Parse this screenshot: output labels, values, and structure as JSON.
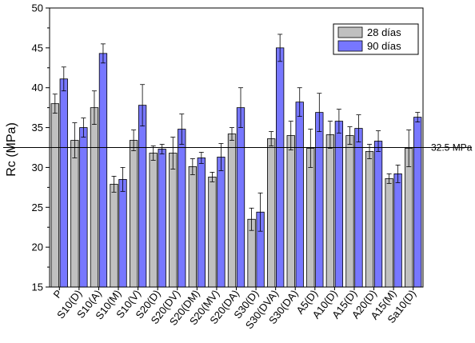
{
  "chart_data": {
    "type": "bar",
    "ylabel": "Rc (MPa)",
    "ylim": [
      15,
      50
    ],
    "yticks": [
      15,
      20,
      25,
      30,
      35,
      40,
      45,
      50
    ],
    "categories": [
      "P",
      "S10(D)",
      "S10(A)",
      "S10(M)",
      "S10(V)",
      "S20(D)",
      "S20(DV)",
      "S20(DM)",
      "S20(MV)",
      "S20(DA)",
      "S30(D)",
      "S30(DVA)",
      "S30(DA)",
      "A5(D)",
      "A10(D)",
      "A15(D)",
      "A20(D)",
      "A15(M)",
      "Sa10(D)"
    ],
    "series": [
      {
        "name": "28 días",
        "color": "#c0c0c0",
        "values": [
          38.0,
          33.4,
          37.5,
          27.9,
          33.4,
          31.8,
          31.8,
          30.1,
          28.8,
          34.2,
          23.5,
          33.6,
          34.0,
          32.4,
          34.1,
          34.0,
          32.0,
          28.6,
          32.4
        ],
        "errors": [
          1.2,
          2.2,
          2.1,
          1.0,
          1.3,
          0.9,
          2.0,
          1.0,
          0.6,
          0.8,
          1.4,
          0.9,
          1.8,
          2.4,
          1.7,
          1.1,
          0.9,
          0.6,
          2.3
        ]
      },
      {
        "name": "90 días",
        "color": "#7777ff",
        "values": [
          41.1,
          35.0,
          44.3,
          28.5,
          37.8,
          32.3,
          34.8,
          31.2,
          31.3,
          37.5,
          24.4,
          45.0,
          38.2,
          36.9,
          35.8,
          34.9,
          33.3,
          29.2,
          36.3
        ]
      }
    ],
    "errors90": [
      1.5,
      1.2,
      1.2,
      1.5,
      2.6,
      0.6,
      1.9,
      0.7,
      1.7,
      2.5,
      2.4,
      1.7,
      1.8,
      2.4,
      1.5,
      1.7,
      1.3,
      1.1,
      0.6
    ],
    "reference_line": {
      "value": 32.5,
      "label": "32.5 MPa"
    },
    "legend_position": "top-right",
    "grid": false
  }
}
